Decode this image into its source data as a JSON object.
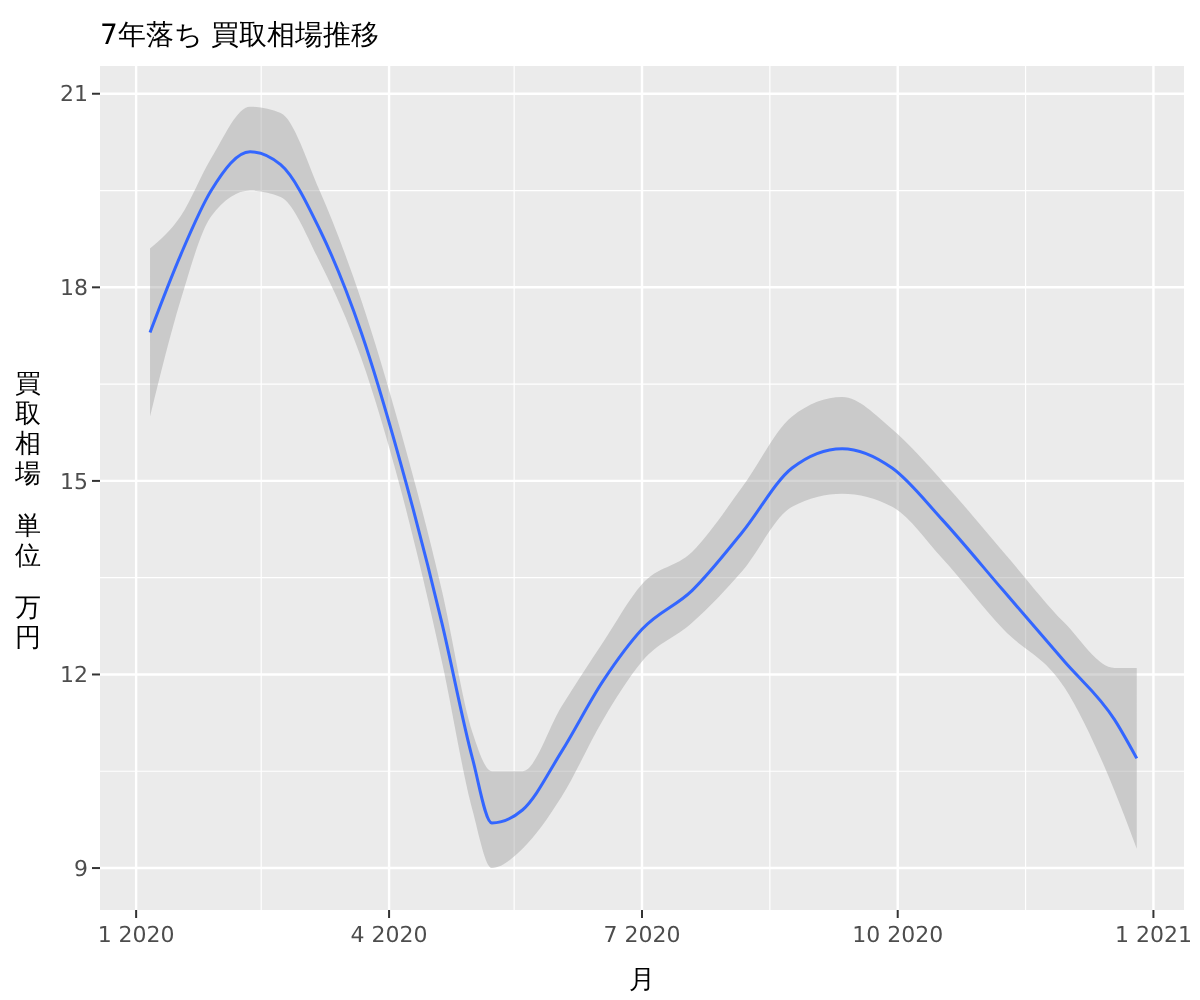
{
  "chart_data": {
    "type": "line",
    "title": "7年落ち 買取相場推移",
    "xlabel": "月",
    "ylabel": "買取相場単位万円",
    "x": [
      "2020-01-06",
      "2020-01-17",
      "2020-01-28",
      "2020-02-11",
      "2020-02-22",
      "2020-03-07",
      "2020-03-22",
      "2020-04-05",
      "2020-04-20",
      "2020-05-01",
      "2020-05-08",
      "2020-05-19",
      "2020-06-02",
      "2020-06-17",
      "2020-07-01",
      "2020-07-19",
      "2020-08-06",
      "2020-08-24",
      "2020-09-11",
      "2020-09-29",
      "2020-10-17",
      "2020-11-08",
      "2020-11-30",
      "2020-12-18",
      "2020-12-26"
    ],
    "series": [
      {
        "color": "#3366ff",
        "values": [
          17.3,
          18.5,
          19.5,
          20.1,
          19.9,
          18.9,
          17.3,
          15.3,
          12.8,
          10.7,
          9.7,
          9.9,
          10.8,
          11.9,
          12.7,
          13.3,
          14.2,
          15.2,
          15.5,
          15.2,
          14.4,
          13.3,
          12.2,
          11.3,
          10.7
        ],
        "lower": [
          16.0,
          17.8,
          19.1,
          19.5,
          19.4,
          18.4,
          16.9,
          14.9,
          12.2,
          9.9,
          9.0,
          9.3,
          10.1,
          11.3,
          12.2,
          12.8,
          13.6,
          14.6,
          14.8,
          14.6,
          13.8,
          12.7,
          11.8,
          10.2,
          9.3
        ],
        "upper": [
          18.6,
          19.1,
          20.0,
          20.8,
          20.7,
          19.5,
          17.8,
          15.8,
          13.3,
          11.1,
          10.5,
          10.5,
          11.5,
          12.5,
          13.4,
          13.9,
          14.9,
          16.0,
          16.3,
          15.8,
          15.0,
          13.9,
          12.8,
          12.1,
          12.1
        ]
      }
    ],
    "xlim": [
      "2019-12-19",
      "2021-01-12"
    ],
    "xticks": [
      {
        "value": "2020-01-01",
        "label": "1 2020"
      },
      {
        "value": "2020-02-15",
        "label": null
      },
      {
        "value": "2020-04-01",
        "label": "4 2020"
      },
      {
        "value": "2020-05-16",
        "label": null
      },
      {
        "value": "2020-07-01",
        "label": "7 2020"
      },
      {
        "value": "2020-08-16",
        "label": null
      },
      {
        "value": "2020-10-01",
        "label": "10 2020"
      },
      {
        "value": "2020-11-16",
        "label": null
      },
      {
        "value": "2021-01-01",
        "label": "1 2021"
      }
    ],
    "ylim": [
      8.35,
      21.43
    ],
    "yticks": [
      9,
      {
        "value": 10.5,
        "label": null
      },
      12,
      {
        "value": 13.5,
        "label": null
      },
      15,
      {
        "value": 16.5,
        "label": null
      },
      18,
      {
        "value": 19.5,
        "label": null
      },
      21
    ],
    "grid": true
  }
}
